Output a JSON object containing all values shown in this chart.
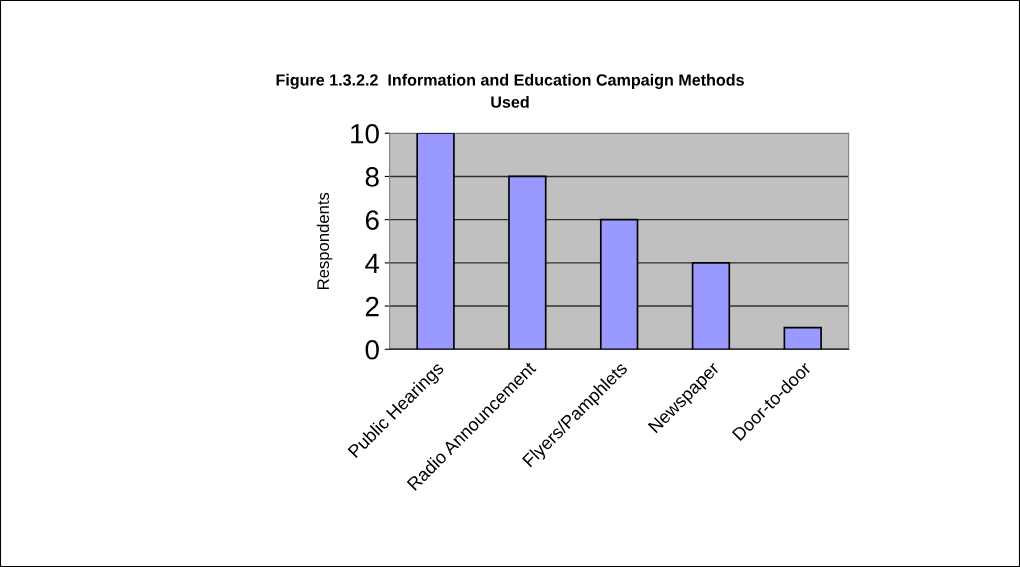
{
  "chart_data": {
    "type": "bar",
    "title": "Figure 1.3.2.2  Information and Education Campaign Methods\nUsed",
    "ylabel": "Respondents",
    "categories": [
      "Public Hearings",
      "Radio Announcement",
      "Flyers/Pamphlets",
      "Newspaper",
      "Door-to-door"
    ],
    "values": [
      10,
      8,
      6,
      4,
      1
    ],
    "color": "#9999ff",
    "ylim": [
      0,
      10
    ],
    "yticks": [
      0,
      2,
      4,
      6,
      8,
      10
    ],
    "grid": "y",
    "legend": false
  }
}
